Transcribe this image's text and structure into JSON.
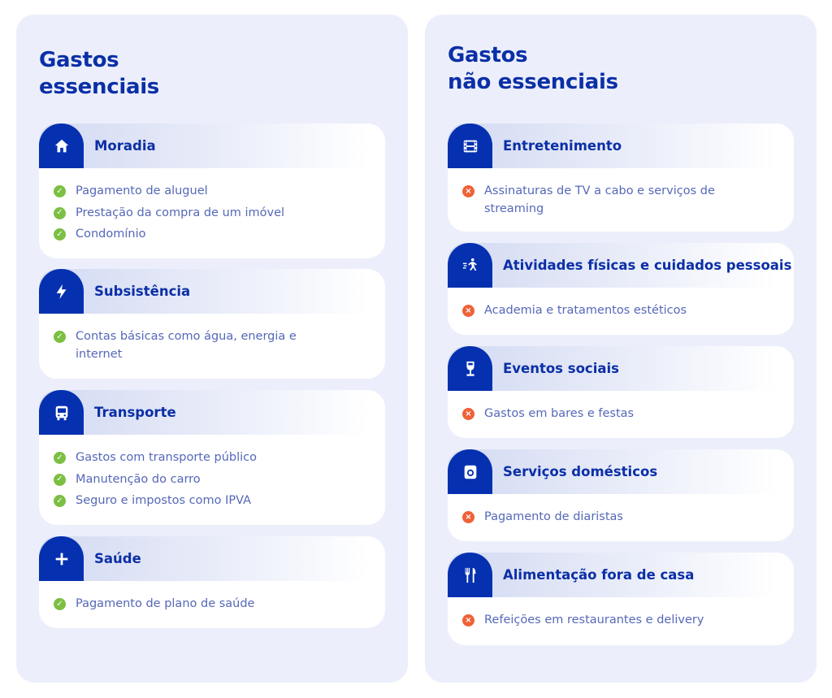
{
  "colors": {
    "accent": "#0530b0",
    "check": "#7bbf43",
    "cross": "#ee6238",
    "panel": "#eceffb"
  },
  "left": {
    "title_line1": "Gastos",
    "title_line2": "essenciais",
    "cards": [
      {
        "title": "Moradia",
        "icon": "house-icon",
        "items": [
          "Pagamento de aluguel",
          "Prestação da compra de um imóvel",
          "Condomínio"
        ]
      },
      {
        "title": "Subsistência",
        "icon": "lightning-icon",
        "items": [
          "Contas básicas como água, energia e internet"
        ]
      },
      {
        "title": "Transporte",
        "icon": "bus-icon",
        "items": [
          "Gastos com transporte público",
          "Manutenção do carro",
          "Seguro e impostos como IPVA"
        ]
      },
      {
        "title": "Saúde",
        "icon": "plus-icon",
        "items": [
          "Pagamento de plano de saúde"
        ]
      }
    ]
  },
  "right": {
    "title_line1": "Gastos",
    "title_line2": "não essenciais",
    "cards": [
      {
        "title": "Entretenimento",
        "icon": "film-icon",
        "items": [
          "Assinaturas de TV a cabo e serviços de streaming"
        ]
      },
      {
        "title": "Atividades físicas e cuidados pessoais",
        "icon": "running-person-icon",
        "items": [
          "Academia e tratamentos estéticos"
        ]
      },
      {
        "title": "Eventos sociais",
        "icon": "wine-glass-icon",
        "items": [
          "Gastos em bares e festas"
        ]
      },
      {
        "title": "Serviços domésticos",
        "icon": "washing-machine-icon",
        "items": [
          "Pagamento de diaristas"
        ]
      },
      {
        "title": "Alimentação fora de casa",
        "icon": "fork-knife-icon",
        "items": [
          "Refeições em restaurantes e delivery"
        ]
      }
    ]
  }
}
